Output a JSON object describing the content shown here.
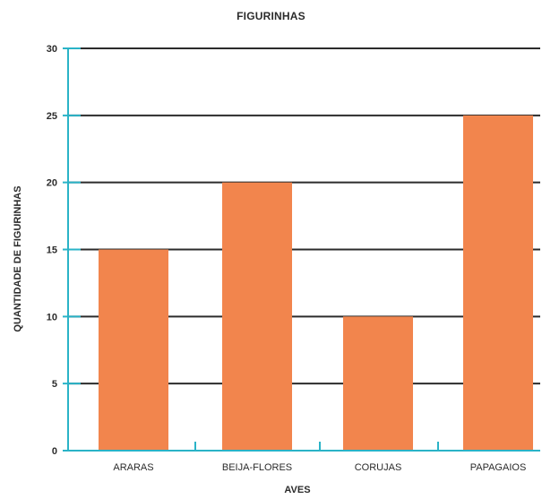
{
  "chart_data": {
    "type": "bar",
    "title": "FIGURINHAS",
    "xlabel": "AVES",
    "ylabel": "QUANTIDADE DE FIGURINHAS",
    "categories": [
      "ARARAS",
      "BEIJA-FLORES",
      "CORUJAS",
      "PAPAGAIOS"
    ],
    "values": [
      15,
      20,
      10,
      25
    ],
    "ylim": [
      0,
      30
    ],
    "yticks": [
      0,
      5,
      10,
      15,
      20,
      25,
      30
    ],
    "grid": true,
    "colors": {
      "bar": "#f2854d",
      "axis": "#2ab3c7",
      "grid": "#2b2b2b",
      "text": "#2b2b2b"
    }
  }
}
